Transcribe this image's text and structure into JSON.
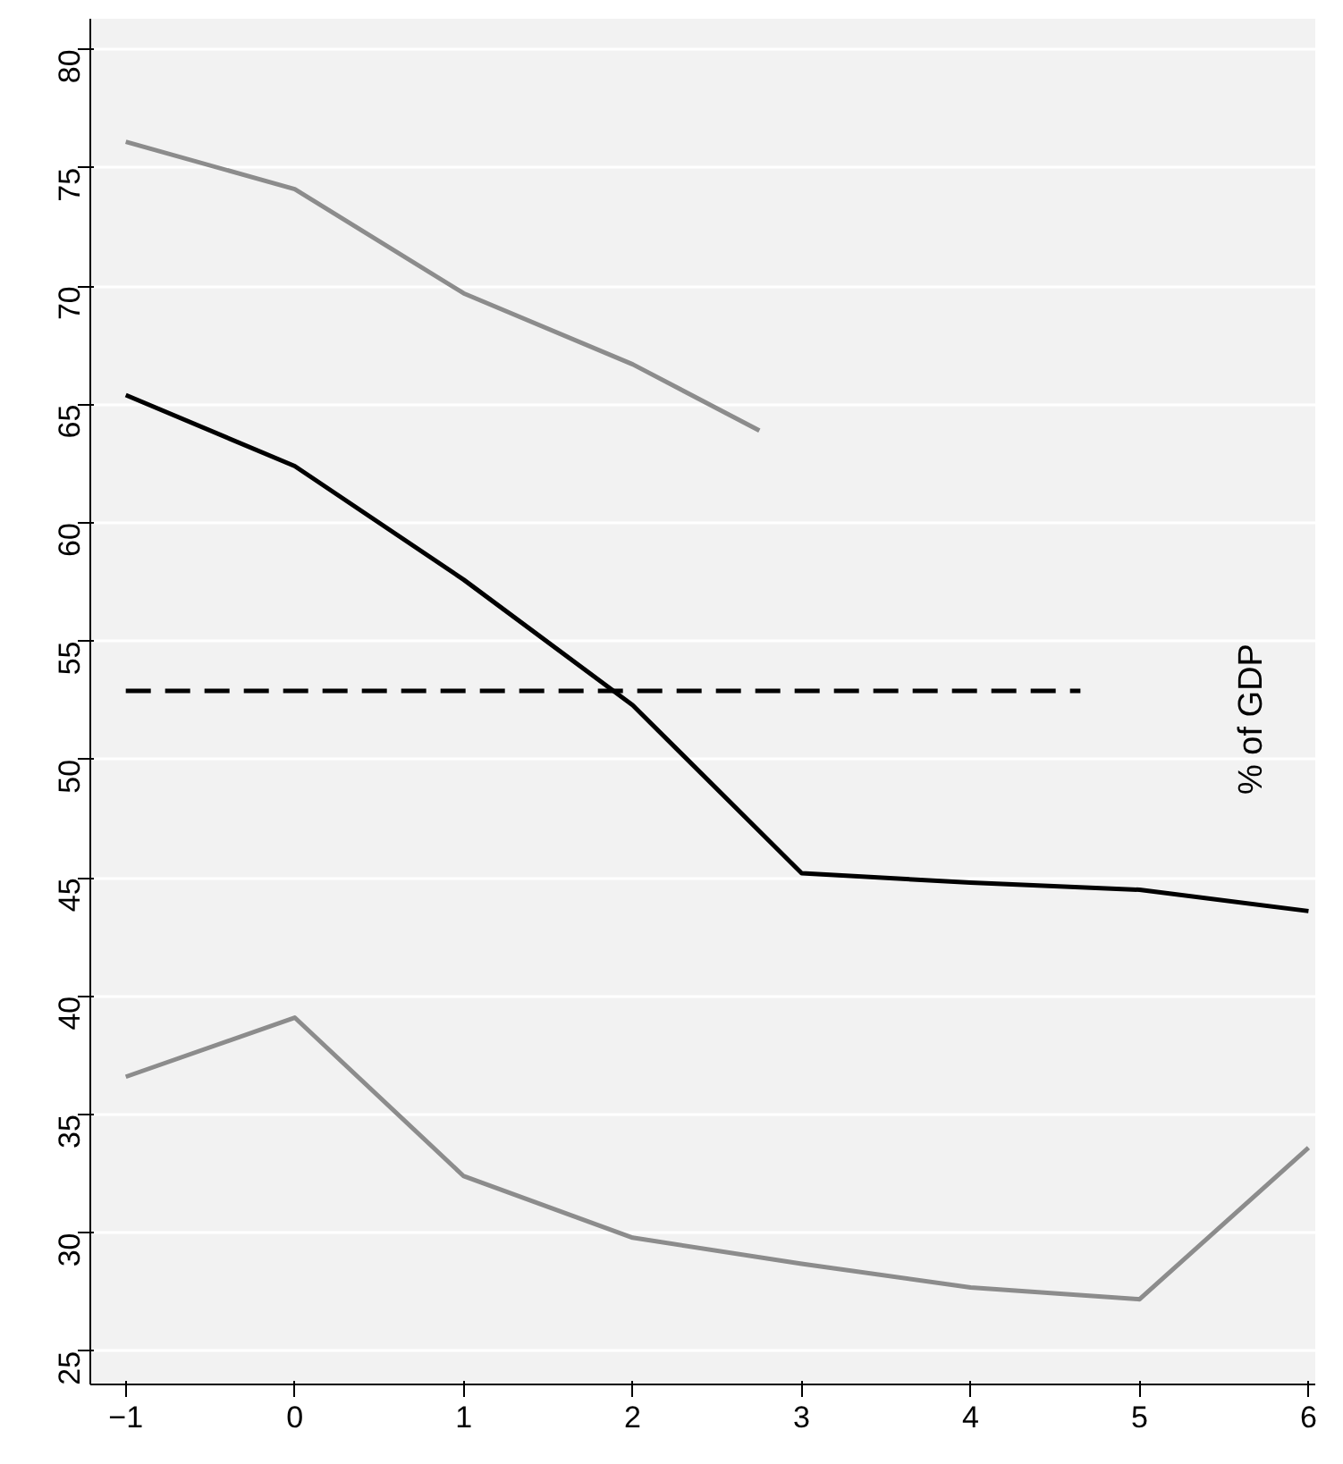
{
  "chart_data": {
    "type": "line",
    "xlim": [
      -1.21,
      6.04
    ],
    "ylim": [
      23.6,
      81.3
    ],
    "xticks": [
      -1,
      0,
      1,
      2,
      3,
      4,
      5,
      6
    ],
    "yticks": [
      25,
      30,
      35,
      40,
      45,
      50,
      55,
      60,
      65,
      70,
      75,
      80
    ],
    "grid": "y",
    "series": [
      {
        "color": "#000000",
        "x": [
          -1,
          0,
          1,
          2,
          3,
          4,
          5,
          6
        ],
        "values": [
          65.4,
          62.4,
          57.6,
          52.3,
          45.2,
          44.8,
          44.5,
          43.6
        ]
      },
      {
        "color": "#8c8c8c",
        "x": [
          -1,
          0,
          1,
          2,
          2.75
        ],
        "values": [
          76.1,
          74.1,
          69.7,
          66.7,
          63.9
        ]
      },
      {
        "color": "#8c8c8c",
        "x": [
          -1,
          0,
          1,
          2,
          3,
          4,
          5,
          6
        ],
        "values": [
          36.6,
          39.1,
          32.4,
          29.8,
          28.7,
          27.7,
          27.2,
          33.6
        ]
      },
      {
        "color": "#000000",
        "line_style": "dashed",
        "x": [
          -1,
          4.65
        ],
        "values": [
          52.9,
          52.9
        ]
      }
    ],
    "annotations": [
      "% of GDP"
    ]
  }
}
